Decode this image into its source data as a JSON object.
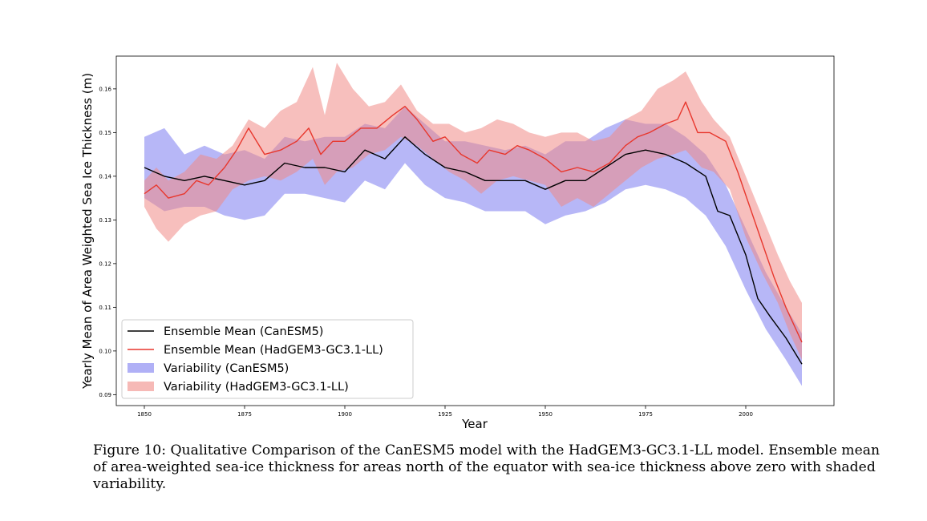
{
  "chart_data": {
    "type": "line",
    "xlabel": "Year",
    "ylabel": "Yearly Mean of Area Weighted Sea Ice Thickness (m)",
    "xlim": [
      1843,
      2022
    ],
    "ylim": [
      0.0875,
      0.1675
    ],
    "xticks": [
      1850,
      1875,
      1900,
      1925,
      1950,
      1975,
      2000
    ],
    "yticks": [
      0.09,
      0.1,
      0.11,
      0.12,
      0.13,
      0.14,
      0.15,
      0.16
    ],
    "ytick_labels": [
      "0.09",
      "0.10",
      "0.11",
      "0.12",
      "0.13",
      "0.14",
      "0.15",
      "0.16"
    ],
    "legend_position": "lower-left",
    "series": [
      {
        "name": "Ensemble Mean (CanESM5)",
        "kind": "line",
        "color": "#000000",
        "x": [
          1850,
          1855,
          1860,
          1865,
          1870,
          1875,
          1880,
          1885,
          1890,
          1895,
          1900,
          1905,
          1910,
          1915,
          1920,
          1925,
          1930,
          1935,
          1940,
          1945,
          1950,
          1955,
          1960,
          1965,
          1970,
          1975,
          1980,
          1985,
          1990,
          1993,
          1996,
          2000,
          2003,
          2006,
          2010,
          2014
        ],
        "y": [
          0.142,
          0.14,
          0.139,
          0.14,
          0.139,
          0.138,
          0.139,
          0.143,
          0.142,
          0.142,
          0.141,
          0.146,
          0.144,
          0.149,
          0.145,
          0.142,
          0.141,
          0.139,
          0.139,
          0.139,
          0.137,
          0.139,
          0.139,
          0.142,
          0.145,
          0.146,
          0.145,
          0.143,
          0.14,
          0.132,
          0.131,
          0.122,
          0.112,
          0.108,
          0.103,
          0.097
        ]
      },
      {
        "name": "Ensemble Mean (HadGEM3-GC3.1-LL)",
        "kind": "line",
        "color": "#e8372d",
        "x": [
          1850,
          1853,
          1856,
          1860,
          1863,
          1866,
          1870,
          1873,
          1876,
          1880,
          1884,
          1888,
          1891,
          1894,
          1897,
          1900,
          1904,
          1908,
          1912,
          1915,
          1918,
          1922,
          1925,
          1929,
          1933,
          1936,
          1940,
          1943,
          1946,
          1950,
          1954,
          1958,
          1962,
          1966,
          1970,
          1973,
          1976,
          1980,
          1983,
          1985,
          1988,
          1991,
          1995,
          1998,
          2001,
          2004,
          2007,
          2010,
          2014
        ],
        "y": [
          0.136,
          0.138,
          0.135,
          0.136,
          0.139,
          0.138,
          0.142,
          0.146,
          0.151,
          0.145,
          0.146,
          0.148,
          0.151,
          0.145,
          0.148,
          0.148,
          0.151,
          0.151,
          0.154,
          0.156,
          0.153,
          0.148,
          0.149,
          0.145,
          0.143,
          0.146,
          0.145,
          0.147,
          0.146,
          0.144,
          0.141,
          0.142,
          0.141,
          0.143,
          0.147,
          0.149,
          0.15,
          0.152,
          0.153,
          0.157,
          0.15,
          0.15,
          0.148,
          0.141,
          0.133,
          0.125,
          0.117,
          0.11,
          0.102
        ]
      }
    ],
    "bands": [
      {
        "name": "Variability (CanESM5)",
        "kind": "band",
        "color": "#7b7bf0",
        "x": [
          1850,
          1855,
          1860,
          1865,
          1870,
          1875,
          1880,
          1885,
          1890,
          1895,
          1900,
          1905,
          1910,
          1915,
          1920,
          1925,
          1930,
          1935,
          1940,
          1945,
          1950,
          1955,
          1960,
          1965,
          1970,
          1975,
          1980,
          1985,
          1990,
          1995,
          2000,
          2005,
          2010,
          2014
        ],
        "upper": [
          0.149,
          0.151,
          0.145,
          0.147,
          0.145,
          0.146,
          0.144,
          0.149,
          0.148,
          0.149,
          0.149,
          0.152,
          0.151,
          0.156,
          0.152,
          0.148,
          0.148,
          0.147,
          0.146,
          0.147,
          0.145,
          0.148,
          0.148,
          0.151,
          0.153,
          0.152,
          0.152,
          0.149,
          0.145,
          0.138,
          0.128,
          0.118,
          0.11,
          0.104
        ],
        "lower": [
          0.135,
          0.132,
          0.133,
          0.133,
          0.131,
          0.13,
          0.131,
          0.136,
          0.136,
          0.135,
          0.134,
          0.139,
          0.137,
          0.143,
          0.138,
          0.135,
          0.134,
          0.132,
          0.132,
          0.132,
          0.129,
          0.131,
          0.132,
          0.134,
          0.137,
          0.138,
          0.137,
          0.135,
          0.131,
          0.124,
          0.114,
          0.105,
          0.098,
          0.092
        ]
      },
      {
        "name": "Variability (HadGEM3-GC3.1-LL)",
        "kind": "band",
        "color": "#f08a86",
        "x": [
          1850,
          1853,
          1856,
          1860,
          1864,
          1868,
          1872,
          1876,
          1880,
          1884,
          1888,
          1892,
          1895,
          1898,
          1902,
          1906,
          1910,
          1914,
          1918,
          1922,
          1926,
          1930,
          1934,
          1938,
          1942,
          1946,
          1950,
          1954,
          1958,
          1962,
          1966,
          1970,
          1974,
          1978,
          1982,
          1985,
          1989,
          1992,
          1996,
          2000,
          2004,
          2008,
          2011,
          2014
        ],
        "upper": [
          0.139,
          0.142,
          0.139,
          0.141,
          0.145,
          0.144,
          0.147,
          0.153,
          0.151,
          0.155,
          0.157,
          0.165,
          0.154,
          0.166,
          0.16,
          0.156,
          0.157,
          0.161,
          0.155,
          0.152,
          0.152,
          0.15,
          0.151,
          0.153,
          0.152,
          0.15,
          0.149,
          0.15,
          0.15,
          0.148,
          0.149,
          0.153,
          0.155,
          0.16,
          0.162,
          0.164,
          0.157,
          0.153,
          0.149,
          0.14,
          0.131,
          0.122,
          0.116,
          0.111
        ],
        "lower": [
          0.133,
          0.128,
          0.125,
          0.129,
          0.131,
          0.132,
          0.137,
          0.139,
          0.14,
          0.139,
          0.141,
          0.144,
          0.138,
          0.141,
          0.142,
          0.145,
          0.146,
          0.149,
          0.147,
          0.144,
          0.141,
          0.139,
          0.136,
          0.139,
          0.14,
          0.139,
          0.138,
          0.133,
          0.135,
          0.133,
          0.136,
          0.139,
          0.142,
          0.144,
          0.145,
          0.146,
          0.142,
          0.141,
          0.137,
          0.126,
          0.118,
          0.111,
          0.104,
          0.098
        ]
      }
    ]
  },
  "caption": "Figure 10: Qualitative Comparison of the CanESM5 model with the HadGEM3-GC3.1-LL model. Ensemble mean of area-weighted sea-ice thickness for areas north of the equator with sea-ice thickness above zero with shaded variability."
}
